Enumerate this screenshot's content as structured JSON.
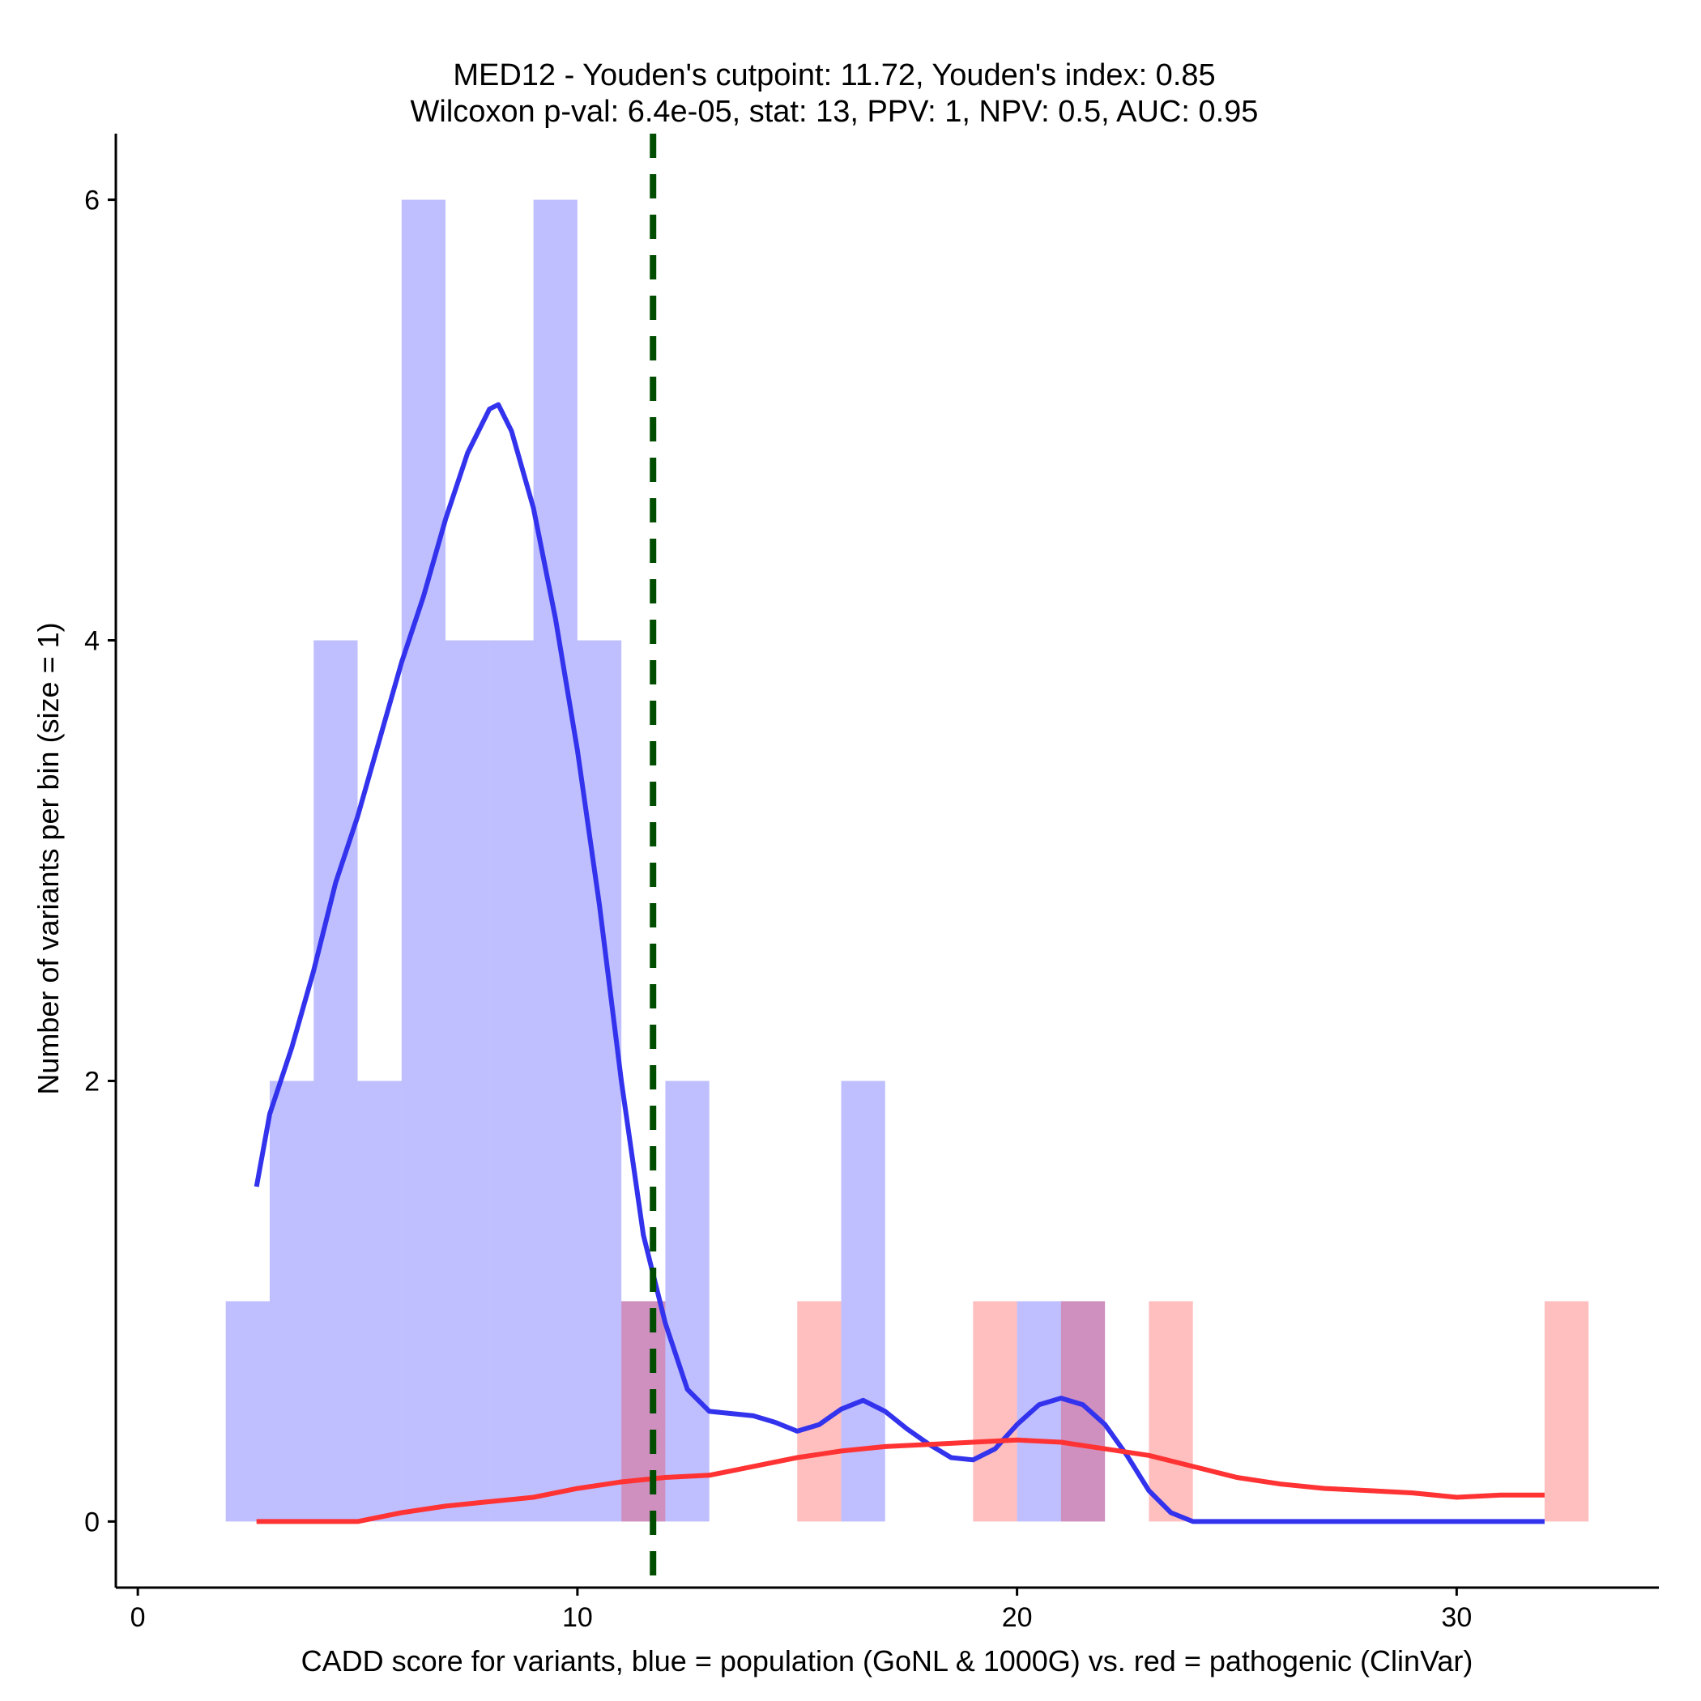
{
  "chart_data": {
    "type": "bar",
    "title": "MED12 - Youden's cutpoint: 11.72, Youden's index: 0.85",
    "subtitle": "Wilcoxon p-val: 6.4e-05, stat: 13, PPV: 1, NPV: 0.5, AUC: 0.95",
    "xlabel": "CADD score for variants, blue = population (GoNL & 1000G) vs. red = pathogenic (ClinVar)",
    "ylabel": "Number of variants per bin (size = 1)",
    "xlim": [
      -0.5,
      34.6
    ],
    "ylim": [
      -0.3,
      6.3
    ],
    "x_ticks": [
      0,
      10,
      20,
      30
    ],
    "y_ticks": [
      0,
      2,
      4,
      6
    ],
    "bin_width": 1,
    "series": [
      {
        "name": "population (GoNL & 1000G)",
        "color": "#0000ff",
        "bin_starts": [
          2,
          3,
          4,
          5,
          6,
          7,
          8,
          9,
          10,
          11,
          12,
          16,
          20,
          21
        ],
        "counts": [
          1,
          2,
          4,
          2,
          6,
          4,
          4,
          6,
          4,
          1,
          2,
          2,
          1,
          1
        ]
      },
      {
        "name": "pathogenic (ClinVar)",
        "color": "#ff0000",
        "bin_starts": [
          11,
          15,
          19,
          21,
          23,
          32
        ],
        "counts": [
          1,
          1,
          1,
          1,
          1,
          1
        ]
      }
    ],
    "density_curves": [
      {
        "name": "population density",
        "color": "#3333ee",
        "x": [
          2.7,
          3.0,
          3.5,
          4.0,
          4.5,
          5.0,
          5.5,
          6.0,
          6.5,
          7.0,
          7.5,
          8.0,
          8.2,
          8.5,
          9.0,
          9.5,
          10.0,
          10.5,
          11.0,
          11.5,
          12.0,
          12.5,
          13.0,
          13.5,
          14.0,
          14.5,
          15.0,
          15.5,
          16.0,
          16.5,
          17.0,
          17.5,
          18.0,
          18.5,
          19.0,
          19.5,
          20.0,
          20.5,
          21.0,
          21.5,
          22.0,
          22.5,
          23.0,
          23.5,
          24.0,
          24.2,
          25.0,
          28.0,
          32.0
        ],
        "y": [
          1.52,
          1.85,
          2.15,
          2.5,
          2.9,
          3.2,
          3.55,
          3.9,
          4.2,
          4.55,
          4.85,
          5.05,
          5.07,
          4.95,
          4.6,
          4.1,
          3.5,
          2.8,
          2.0,
          1.3,
          0.9,
          0.6,
          0.5,
          0.49,
          0.48,
          0.45,
          0.41,
          0.44,
          0.51,
          0.55,
          0.5,
          0.42,
          0.35,
          0.29,
          0.28,
          0.33,
          0.44,
          0.53,
          0.56,
          0.53,
          0.44,
          0.3,
          0.14,
          0.04,
          0.0,
          0.0,
          0.0,
          0.0,
          0.0
        ]
      },
      {
        "name": "pathogenic density",
        "color": "#ff3333",
        "x": [
          2.7,
          4.0,
          5.0,
          6.0,
          7.0,
          8.0,
          9.0,
          10.0,
          11.0,
          12.0,
          13.0,
          14.0,
          15.0,
          16.0,
          17.0,
          18.0,
          19.0,
          20.0,
          21.0,
          22.0,
          23.0,
          24.0,
          25.0,
          26.0,
          27.0,
          28.0,
          29.0,
          30.0,
          31.0,
          32.0
        ],
        "y": [
          0.0,
          0.0,
          0.0,
          0.04,
          0.07,
          0.09,
          0.11,
          0.15,
          0.18,
          0.2,
          0.21,
          0.25,
          0.29,
          0.32,
          0.34,
          0.35,
          0.36,
          0.37,
          0.36,
          0.33,
          0.3,
          0.25,
          0.2,
          0.17,
          0.15,
          0.14,
          0.13,
          0.11,
          0.12,
          0.12
        ]
      }
    ],
    "cutpoint": {
      "x": 11.72,
      "color": "#004d00"
    }
  }
}
